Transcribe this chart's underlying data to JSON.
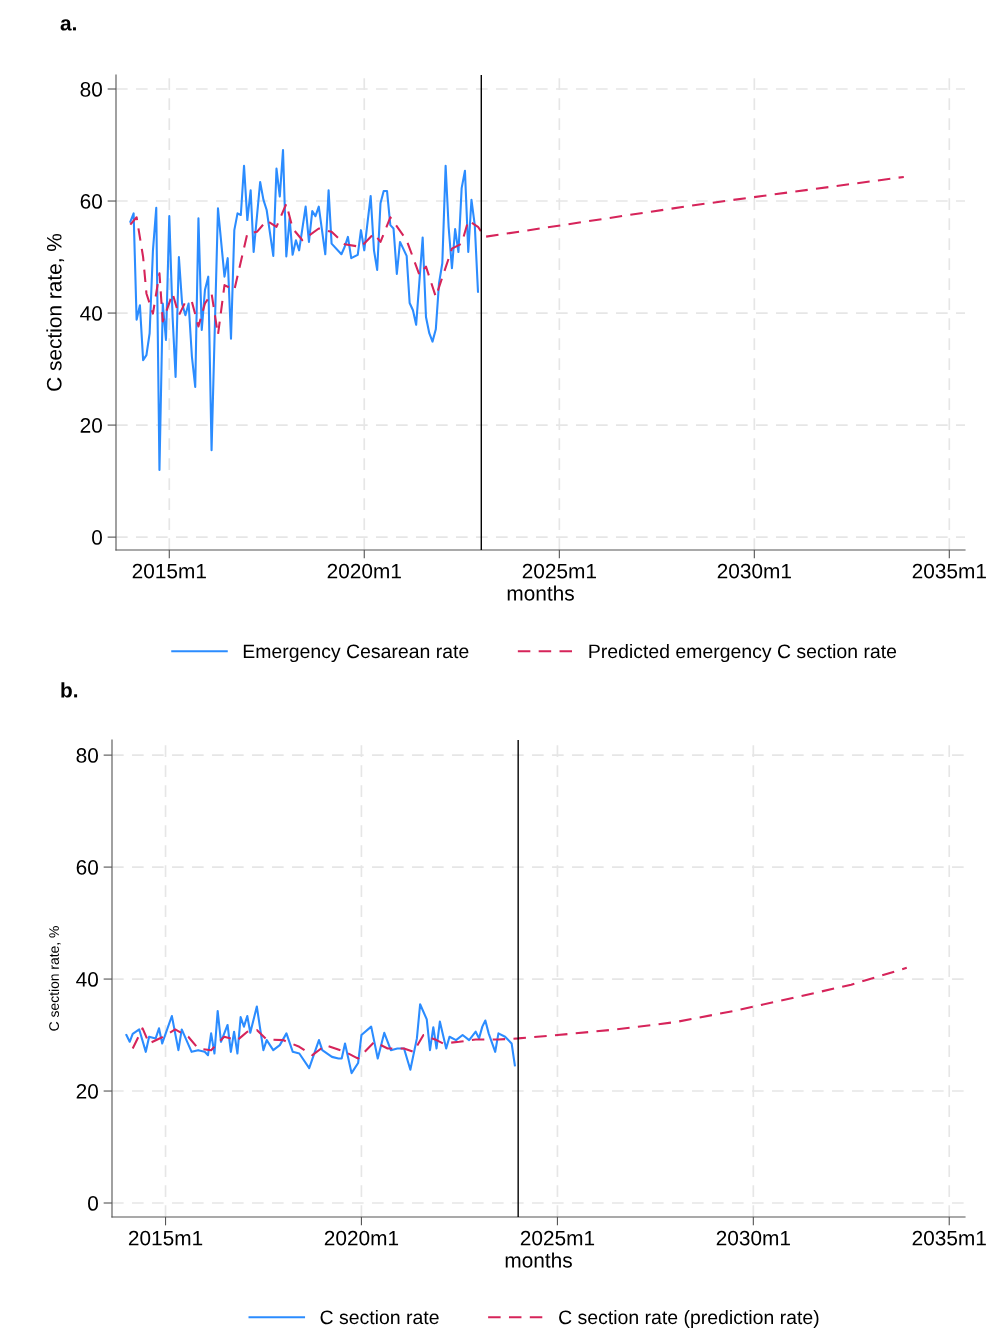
{
  "chart_data": [
    {
      "type": "line",
      "title": "a.",
      "xlabel": "months",
      "ylabel": "C section rate, %",
      "xlim": [
        "2013-08-20",
        "2035-05-28"
      ],
      "ylim": [
        -2.3,
        82.5
      ],
      "xticks": [
        {
          "value": "2015-01",
          "label": "2015m1"
        },
        {
          "value": "2020-01",
          "label": "2020m1"
        },
        {
          "value": "2025-01",
          "label": "2025m1"
        },
        {
          "value": "2030-01",
          "label": "2030m1"
        },
        {
          "value": "2035-01",
          "label": "2035m1"
        }
      ],
      "yticks": [
        0,
        20,
        40,
        60,
        80
      ],
      "grid": true,
      "legend": "bottom",
      "marker": "none",
      "ref_lines": [
        {
          "axis": "x",
          "value": "2023-01",
          "color": "#000000",
          "line_style": "solid"
        }
      ],
      "series": [
        {
          "name": "Emergency Cesarean rate",
          "color": "#2b8cff",
          "line_style": "solid",
          "x": [
            "2014-01",
            "2014-02",
            "2014-03",
            "2014-04",
            "2014-05",
            "2014-06",
            "2014-07",
            "2014-08",
            "2014-09",
            "2014-10",
            "2014-11",
            "2014-12",
            "2015-01",
            "2015-02",
            "2015-03",
            "2015-04",
            "2015-05",
            "2015-06",
            "2015-07",
            "2015-08",
            "2015-09",
            "2015-10",
            "2015-11",
            "2015-12",
            "2016-01",
            "2016-02",
            "2016-04",
            "2016-06",
            "2016-07",
            "2016-08",
            "2016-09",
            "2016-10",
            "2016-11",
            "2016-12",
            "2017-01",
            "2017-02",
            "2017-03",
            "2017-05",
            "2017-06",
            "2017-07",
            "2017-09",
            "2017-10",
            "2017-11",
            "2017-12",
            "2018-01",
            "2018-02",
            "2018-03",
            "2018-04",
            "2018-05",
            "2018-07",
            "2018-08",
            "2018-09",
            "2018-10",
            "2018-11",
            "2019-01",
            "2019-02",
            "2019-03",
            "2019-06",
            "2019-07",
            "2019-08",
            "2019-09",
            "2019-11",
            "2019-12",
            "2020-01",
            "2020-03",
            "2020-04",
            "2020-05",
            "2020-06",
            "2020-07",
            "2020-08",
            "2020-09",
            "2020-10",
            "2020-11",
            "2020-12",
            "2021-02",
            "2021-03",
            "2021-04",
            "2021-05",
            "2021-07",
            "2021-08",
            "2021-09",
            "2021-10",
            "2021-11",
            "2021-12",
            "2022-01",
            "2022-02",
            "2022-03",
            "2022-04",
            "2022-05",
            "2022-06",
            "2022-07",
            "2022-08",
            "2022-09",
            "2022-10",
            "2022-11",
            "2022-12"
          ],
          "values": [
            56.3,
            57.8,
            38.8,
            41.4,
            31.6,
            32.5,
            36.4,
            51.2,
            58.8,
            12.0,
            41.7,
            35.2,
            57.3,
            39.3,
            28.6,
            50.0,
            41.7,
            39.6,
            41.7,
            32.2,
            26.8,
            56.9,
            37.0,
            44.1,
            46.5,
            15.5,
            58.7,
            46.5,
            49.8,
            35.4,
            54.8,
            57.8,
            57.5,
            66.3,
            56.6,
            61.9,
            50.9,
            63.4,
            60.2,
            58.4,
            50.2,
            65.8,
            60.8,
            69.1,
            50.1,
            56.9,
            50.4,
            53.0,
            51.2,
            59.0,
            52.7,
            58.2,
            57.3,
            59.0,
            50.5,
            61.9,
            52.4,
            50.5,
            51.8,
            53.6,
            49.8,
            50.4,
            54.8,
            51.2,
            60.9,
            51.2,
            47.7,
            59.6,
            61.8,
            61.8,
            55.7,
            55.1,
            47.0,
            52.7,
            50.2,
            41.8,
            40.5,
            37.9,
            53.5,
            39.3,
            36.4,
            34.9,
            37.1,
            45.3,
            48.9,
            66.3,
            55.4,
            48.0,
            55.0,
            50.9,
            62.3,
            65.4,
            50.9,
            60.2,
            55.7,
            43.8
          ]
        },
        {
          "name": "Predicted emergency C section rate",
          "color": "#d6245a",
          "line_style": "dashed",
          "x": [
            "2014-01",
            "2014-03",
            "2014-05",
            "2014-06",
            "2014-08",
            "2014-10",
            "2014-11",
            "2015-02",
            "2015-04",
            "2015-06",
            "2015-08",
            "2015-10",
            "2015-12",
            "2016-02",
            "2016-04",
            "2016-06",
            "2016-09",
            "2017-01",
            "2017-04",
            "2017-07",
            "2017-10",
            "2018-01",
            "2018-03",
            "2018-06",
            "2018-11",
            "2019-03",
            "2019-07",
            "2019-12",
            "2020-04",
            "2020-06",
            "2020-09",
            "2021-02",
            "2021-06",
            "2021-08",
            "2021-11",
            "2022-04",
            "2022-07",
            "2022-09",
            "2022-12",
            "2023-02",
            "2028-07",
            "2033-11"
          ],
          "values": [
            55.8,
            57.1,
            50.0,
            43.5,
            39.9,
            47.1,
            38.5,
            43.5,
            39.6,
            42.0,
            42.0,
            37.6,
            41.7,
            43.5,
            36.1,
            45.0,
            44.1,
            54.2,
            54.5,
            56.5,
            55.4,
            59.5,
            55.1,
            53.0,
            55.1,
            54.5,
            52.3,
            51.8,
            54.2,
            52.7,
            57.1,
            53.0,
            46.8,
            48.3,
            42.9,
            51.5,
            52.4,
            56.5,
            55.4,
            53.6,
            59.3,
            64.3
          ]
        }
      ]
    },
    {
      "type": "line",
      "title": "b.",
      "xlabel": "months",
      "ylabel": "C section rate, %",
      "xlim": [
        "2013-08-20",
        "2035-05-28"
      ],
      "ylim": [
        -2.5,
        82.7
      ],
      "xticks": [
        {
          "value": "2015-01",
          "label": "2015m1"
        },
        {
          "value": "2020-01",
          "label": "2020m1"
        },
        {
          "value": "2025-01",
          "label": "2025m1"
        },
        {
          "value": "2030-01",
          "label": "2030m1"
        },
        {
          "value": "2035-01",
          "label": "2035m1"
        }
      ],
      "yticks": [
        0,
        20,
        40,
        60,
        80
      ],
      "grid": true,
      "legend": "bottom",
      "marker": "none",
      "ref_lines": [
        {
          "axis": "x",
          "value": "2024-01",
          "color": "#000000",
          "line_style": "solid"
        }
      ],
      "series": [
        {
          "name": "C section rate",
          "color": "#2b8cff",
          "line_style": "solid",
          "x": [
            "2014-01",
            "2014-02",
            "2014-03",
            "2014-05",
            "2014-07",
            "2014-08",
            "2014-10",
            "2014-11",
            "2014-12",
            "2015-03",
            "2015-05",
            "2015-06",
            "2015-09",
            "2015-11",
            "2016-01",
            "2016-02",
            "2016-03",
            "2016-04",
            "2016-05",
            "2016-06",
            "2016-08",
            "2016-09",
            "2016-10",
            "2016-11",
            "2016-12",
            "2017-01",
            "2017-02",
            "2017-03",
            "2017-05",
            "2017-07",
            "2017-08",
            "2017-10",
            "2017-12",
            "2018-02",
            "2018-04",
            "2018-06",
            "2018-09",
            "2018-12",
            "2019-01",
            "2019-04",
            "2019-06",
            "2019-07",
            "2019-08",
            "2019-10",
            "2019-12",
            "2020-01",
            "2020-04",
            "2020-06",
            "2020-08",
            "2020-10",
            "2020-12",
            "2021-02",
            "2021-04",
            "2021-06",
            "2021-07",
            "2021-09",
            "2021-10",
            "2021-11",
            "2021-12",
            "2022-01",
            "2022-03",
            "2022-04",
            "2022-06",
            "2022-08",
            "2022-10",
            "2022-12",
            "2023-01",
            "2023-02",
            "2023-03",
            "2023-04",
            "2023-06",
            "2023-07",
            "2023-09",
            "2023-11",
            "2023-12"
          ],
          "values": [
            30.0,
            28.8,
            30.2,
            31.0,
            27.0,
            29.7,
            29.4,
            31.2,
            28.5,
            33.4,
            27.3,
            31.0,
            27.0,
            27.3,
            27.0,
            26.4,
            30.3,
            26.7,
            34.3,
            28.8,
            31.8,
            27.0,
            30.6,
            26.7,
            33.2,
            31.5,
            33.4,
            30.4,
            35.1,
            27.3,
            29.1,
            27.3,
            28.2,
            30.3,
            27.0,
            26.7,
            24.1,
            29.1,
            27.3,
            26.1,
            25.8,
            25.8,
            28.5,
            23.2,
            25.0,
            30.0,
            31.5,
            25.8,
            30.4,
            27.3,
            27.6,
            27.6,
            23.8,
            29.4,
            35.5,
            32.8,
            27.3,
            31.4,
            27.6,
            32.4,
            27.6,
            29.7,
            29.1,
            30.0,
            29.1,
            30.6,
            29.4,
            31.5,
            32.6,
            30.3,
            27.0,
            30.3,
            29.7,
            28.5,
            24.6
          ]
        },
        {
          "name": "C section rate (prediction rate)",
          "color": "#d6245a",
          "line_style": "dashed",
          "x": [
            "2014-03",
            "2014-06",
            "2014-08",
            "2014-12",
            "2015-04",
            "2015-08",
            "2015-11",
            "2016-03",
            "2016-07",
            "2016-11",
            "2017-02",
            "2017-05",
            "2017-08",
            "2018-01",
            "2018-06",
            "2018-10",
            "2019-02",
            "2019-08",
            "2019-12",
            "2020-05",
            "2020-09",
            "2021-02",
            "2021-05",
            "2021-08",
            "2021-12",
            "2022-02",
            "2022-07",
            "2022-12",
            "2023-07",
            "2024-01",
            "2025-01",
            "2026-07",
            "2028-01",
            "2029-07",
            "2031-01",
            "2032-07",
            "2033-12"
          ],
          "values": [
            27.6,
            31.2,
            28.5,
            29.6,
            31.0,
            29.7,
            27.6,
            27.3,
            29.7,
            29.1,
            30.6,
            30.9,
            29.2,
            29.1,
            27.9,
            26.4,
            28.2,
            27.0,
            25.8,
            28.8,
            27.6,
            27.6,
            27.0,
            30.0,
            29.1,
            28.5,
            28.8,
            29.2,
            29.2,
            29.4,
            30.0,
            31.0,
            32.3,
            34.3,
            36.6,
            39.0,
            42.0
          ]
        }
      ]
    }
  ]
}
